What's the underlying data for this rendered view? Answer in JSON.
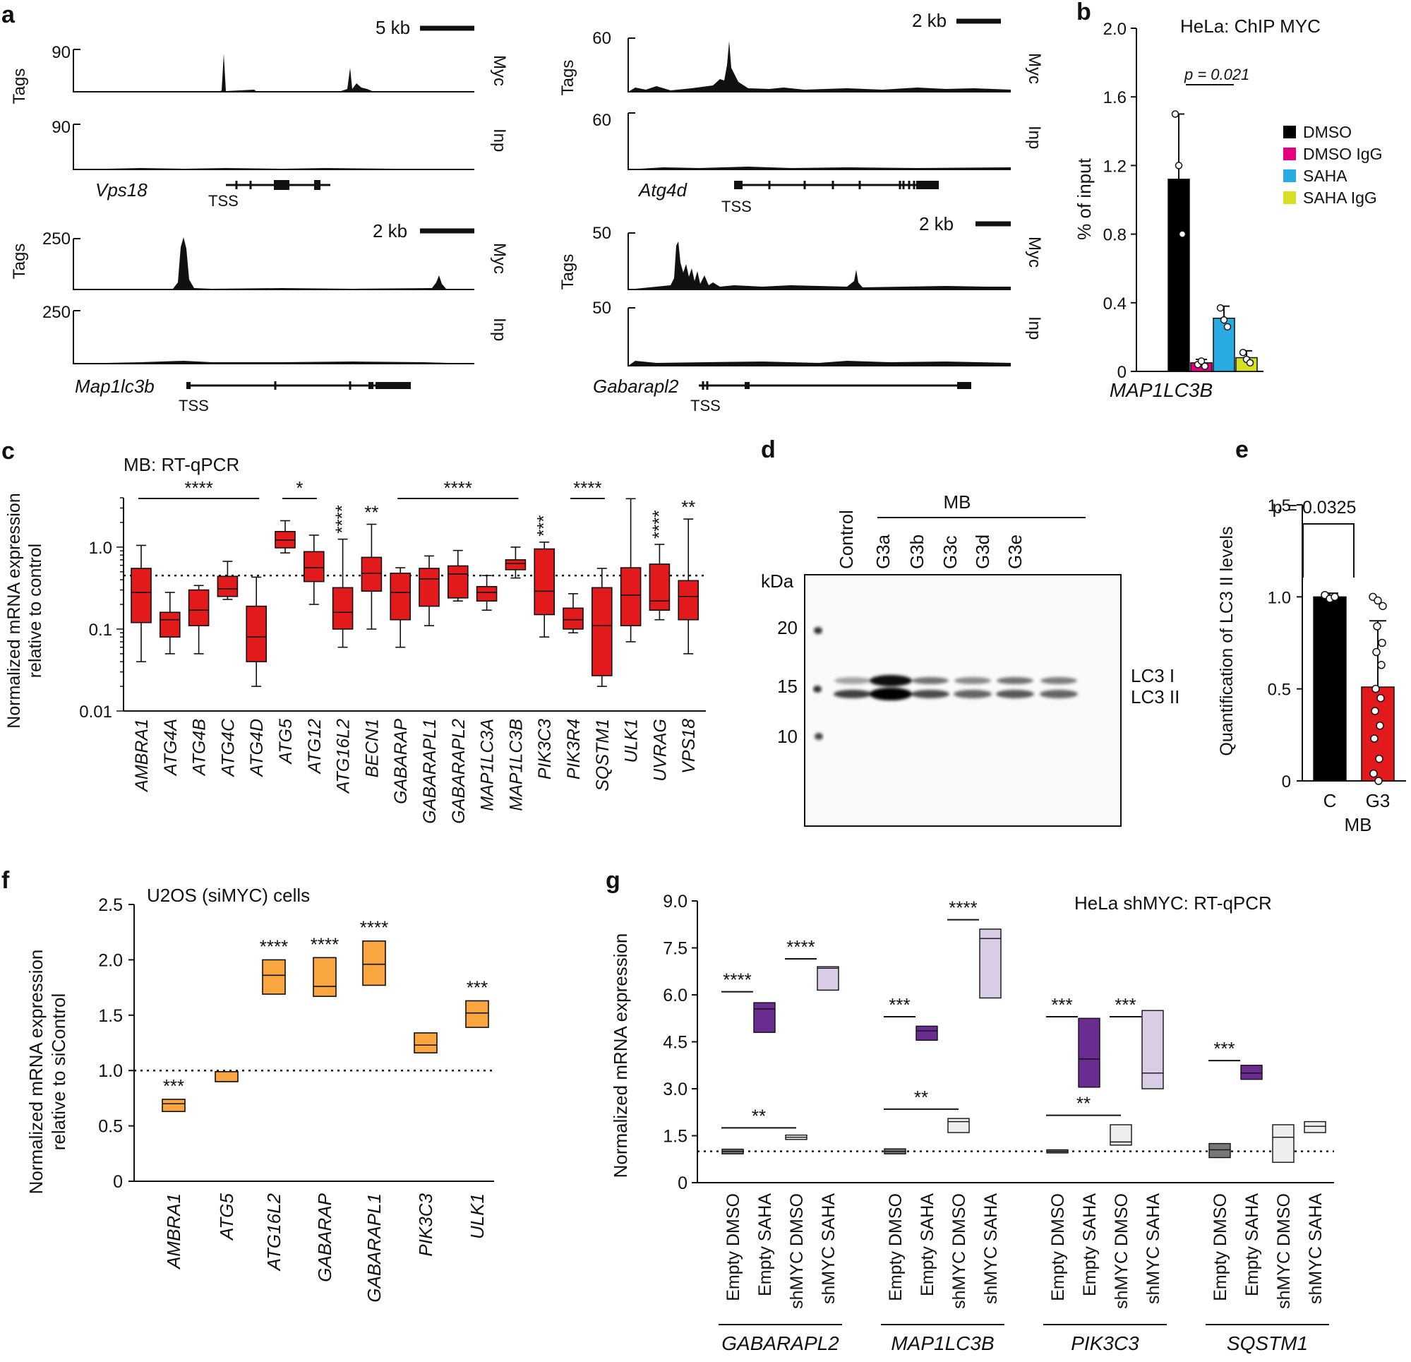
{
  "panel_labels": {
    "a": "a",
    "b": "b",
    "c": "c",
    "d": "d",
    "e": "e",
    "f": "f",
    "g": "g"
  },
  "panel_a": {
    "ylabel": "Tags",
    "tss": "TSS",
    "tracks": [
      {
        "gene": "Vps18",
        "scale": "5 kb",
        "myc_max": "90",
        "inp_max": "90",
        "myc_label": "Myc",
        "inp_label": "Inp"
      },
      {
        "gene": "Atg4d",
        "scale": "2 kb",
        "myc_max": "60",
        "inp_max": "60",
        "myc_label": "Myc",
        "inp_label": "Inp"
      },
      {
        "gene": "Map1lc3b",
        "scale": "2 kb",
        "myc_max": "250",
        "inp_max": "250",
        "myc_label": "Myc",
        "inp_label": "Inp"
      },
      {
        "gene": "Gabarapl2",
        "scale": "2 kb",
        "myc_max": "50",
        "inp_max": "50",
        "myc_label": "Myc",
        "inp_label": "Inp"
      }
    ]
  },
  "chart_data": [
    {
      "id": "b",
      "type": "bar",
      "title": "HeLa: ChIP MYC",
      "ylabel": "% of input",
      "xlabel": "MAP1LC3B",
      "ylim": [
        0,
        2.0
      ],
      "yticks": [
        "0",
        "0.4",
        "0.8",
        "1.2",
        "1.6",
        "2.0"
      ],
      "pvalue": "p = 0.021",
      "series": [
        {
          "name": "DMSO",
          "value": 1.12,
          "err": 0.38,
          "color": "#000000",
          "points": [
            1.5,
            1.2,
            0.8
          ]
        },
        {
          "name": "DMSO IgG",
          "value": 0.05,
          "err": 0.02,
          "color": "#e5007e",
          "points": [
            0.04,
            0.06,
            0.03
          ]
        },
        {
          "name": "SAHA",
          "value": 0.31,
          "err": 0.07,
          "color": "#29abe2",
          "points": [
            0.37,
            0.3,
            0.26
          ]
        },
        {
          "name": "SAHA IgG",
          "value": 0.08,
          "err": 0.04,
          "color": "#d7df23",
          "points": [
            0.11,
            0.07,
            0.05
          ]
        }
      ]
    },
    {
      "id": "c",
      "type": "boxplot",
      "title": "MB: RT-qPCR",
      "ylabel": [
        "Normalized mRNA expression",
        "relative to control"
      ],
      "yscale": "log",
      "ylim": [
        0.01,
        4
      ],
      "yticks": [
        "0.01",
        "0.1",
        "1.0"
      ],
      "reference": 0.45,
      "categories": [
        "AMBRA1",
        "ATG4A",
        "ATG4B",
        "ATG4C",
        "ATG4D",
        "ATG5",
        "ATG12",
        "ATG16L2",
        "BECN1",
        "GABARAP",
        "GABARAPL1",
        "GABARAPL2",
        "MAP1LC3A",
        "MAP1LC3B",
        "PIK3C3",
        "PIK3R4",
        "SQSTM1",
        "ULK1",
        "UVRAG",
        "VPS18"
      ],
      "boxes": [
        {
          "min": 0.04,
          "q1": 0.12,
          "med": 0.28,
          "q3": 0.55,
          "max": 1.05
        },
        {
          "min": 0.05,
          "q1": 0.08,
          "med": 0.13,
          "q3": 0.16,
          "max": 0.28
        },
        {
          "min": 0.05,
          "q1": 0.11,
          "med": 0.17,
          "q3": 0.3,
          "max": 0.34
        },
        {
          "min": 0.23,
          "q1": 0.25,
          "med": 0.31,
          "q3": 0.44,
          "max": 0.67
        },
        {
          "min": 0.02,
          "q1": 0.04,
          "med": 0.08,
          "q3": 0.19,
          "max": 0.43
        },
        {
          "min": 0.85,
          "q1": 0.98,
          "med": 1.22,
          "q3": 1.55,
          "max": 2.1
        },
        {
          "min": 0.2,
          "q1": 0.38,
          "med": 0.56,
          "q3": 0.88,
          "max": 1.4
        },
        {
          "min": 0.06,
          "q1": 0.1,
          "med": 0.16,
          "q3": 0.32,
          "max": 1.25
        },
        {
          "min": 0.1,
          "q1": 0.29,
          "med": 0.48,
          "q3": 0.75,
          "max": 1.9
        },
        {
          "min": 0.06,
          "q1": 0.13,
          "med": 0.28,
          "q3": 0.48,
          "max": 0.56
        },
        {
          "min": 0.11,
          "q1": 0.19,
          "med": 0.41,
          "q3": 0.55,
          "max": 0.78
        },
        {
          "min": 0.22,
          "q1": 0.24,
          "med": 0.47,
          "q3": 0.59,
          "max": 0.91
        },
        {
          "min": 0.17,
          "q1": 0.22,
          "med": 0.28,
          "q3": 0.33,
          "max": 0.45
        },
        {
          "min": 0.42,
          "q1": 0.53,
          "med": 0.63,
          "q3": 0.7,
          "max": 1.0
        },
        {
          "min": 0.08,
          "q1": 0.15,
          "med": 0.29,
          "q3": 0.95,
          "max": 1.15
        },
        {
          "min": 0.09,
          "q1": 0.1,
          "med": 0.13,
          "q3": 0.18,
          "max": 0.27
        },
        {
          "min": 0.02,
          "q1": 0.027,
          "med": 0.11,
          "q3": 0.32,
          "max": 0.55
        },
        {
          "min": 0.07,
          "q1": 0.11,
          "med": 0.26,
          "q3": 0.56,
          "max": 3.9
        },
        {
          "min": 0.13,
          "q1": 0.17,
          "med": 0.22,
          "q3": 0.62,
          "max": 1.08
        },
        {
          "min": 0.05,
          "q1": 0.13,
          "med": 0.25,
          "q3": 0.39,
          "max": 2.2
        }
      ],
      "significance": [
        {
          "label": "****",
          "from": 0,
          "to": 4,
          "type": "bar"
        },
        {
          "label": "*",
          "from": 5,
          "to": 6,
          "type": "bar"
        },
        {
          "label": "****",
          "from": 7,
          "to": 7,
          "type": "vertical"
        },
        {
          "label": "**",
          "from": 8,
          "to": 8,
          "type": "text"
        },
        {
          "label": "****",
          "from": 9,
          "to": 13,
          "type": "bar"
        },
        {
          "label": "***",
          "from": 14,
          "to": 14,
          "type": "vertical"
        },
        {
          "label": "****",
          "from": 15,
          "to": 16,
          "type": "bar"
        },
        {
          "label": "****",
          "from": 18,
          "to": 18,
          "type": "vertical"
        },
        {
          "label": "**",
          "from": 19,
          "to": 19,
          "type": "text"
        }
      ]
    },
    {
      "id": "d",
      "type": "western_blot",
      "group_label": "MB",
      "kda_label": "kDa",
      "lanes": [
        "Control",
        "G3a",
        "G3b",
        "G3c",
        "G3d",
        "G3e"
      ],
      "markers": [
        "20",
        "15",
        "10"
      ],
      "bands": [
        "LC3 I",
        "LC3 II"
      ]
    },
    {
      "id": "e",
      "type": "bar",
      "ylabel": "Quantification of LC3 II levels",
      "xlabel": "MB",
      "ylim": [
        0,
        1.5
      ],
      "yticks": [
        "0",
        "0.5",
        "1.0",
        "1.5"
      ],
      "pvalue": "p = 0.0325",
      "categories": [
        "C",
        "G3"
      ],
      "values": [
        1.0,
        0.51
      ],
      "err": [
        0.02,
        0.36
      ],
      "colors": [
        "#000000",
        "#e31a1c"
      ],
      "points": [
        [
          1.01,
          0.99,
          1.0
        ],
        [
          1.0,
          0.98,
          0.95,
          0.84,
          0.75,
          0.7,
          0.63,
          0.5,
          0.45,
          0.38,
          0.3,
          0.23,
          0.12,
          0.04,
          0.0
        ]
      ]
    },
    {
      "id": "f",
      "type": "floating_bar",
      "title": "U2OS (siMYC) cells",
      "ylabel": [
        "Normalized mRNA expression",
        "relative to siControl"
      ],
      "ylim": [
        0,
        2.5
      ],
      "yticks": [
        "0",
        "0.5",
        "1.0",
        "1.5",
        "2.0",
        "2.5"
      ],
      "reference": 1.0,
      "color": "#f9a640",
      "categories": [
        "AMBRA1",
        "ATG5",
        "ATG16L2",
        "GABARAP",
        "GABARAPL1",
        "PIK3C3",
        "ULK1"
      ],
      "ranges": [
        {
          "lo": 0.63,
          "mid": 0.7,
          "hi": 0.74,
          "sig": "***"
        },
        {
          "lo": 0.9,
          "mid": 0.9,
          "hi": 0.99,
          "sig": ""
        },
        {
          "lo": 1.69,
          "mid": 1.86,
          "hi": 2.0,
          "sig": "****"
        },
        {
          "lo": 1.67,
          "mid": 1.76,
          "hi": 2.02,
          "sig": "****"
        },
        {
          "lo": 1.77,
          "mid": 1.96,
          "hi": 2.17,
          "sig": "****"
        },
        {
          "lo": 1.16,
          "mid": 1.23,
          "hi": 1.34,
          "sig": ""
        },
        {
          "lo": 1.39,
          "mid": 1.52,
          "hi": 1.63,
          "sig": "***"
        }
      ]
    },
    {
      "id": "g",
      "type": "floating_bar",
      "title": "HeLa shMYC: RT-qPCR",
      "ylabel": "Normalized mRNA expression",
      "ylim": [
        0,
        9
      ],
      "yticks": [
        "0",
        "1.5",
        "3.0",
        "4.5",
        "6.0",
        "7.5",
        "9.0"
      ],
      "reference": 1.0,
      "conditions": [
        "Empty DMSO",
        "Empty SAHA",
        "shMYC DMSO",
        "shMYC SAHA"
      ],
      "groups": [
        {
          "name": "GABARAPL2",
          "ranges": [
            {
              "lo": 0.92,
              "mid": 1.0,
              "hi": 1.07,
              "color": "#777777"
            },
            {
              "lo": 4.8,
              "mid": 5.55,
              "hi": 5.75,
              "color": "#6a2c91"
            },
            {
              "lo": 1.38,
              "mid": 1.45,
              "hi": 1.52,
              "color": "#eeeeee"
            },
            {
              "lo": 6.15,
              "mid": 6.85,
              "hi": 6.9,
              "color": "#d9cde6"
            }
          ],
          "sig": [
            {
              "label": "****",
              "from": 0,
              "to": 1,
              "level": 6.1
            },
            {
              "label": "**",
              "from": 0,
              "to": 2,
              "level": 1.75
            },
            {
              "label": "****",
              "from": 2,
              "to": 3,
              "level": 7.15
            }
          ]
        },
        {
          "name": "MAP1LC3B",
          "ranges": [
            {
              "lo": 0.92,
              "mid": 1.0,
              "hi": 1.08,
              "color": "#777777"
            },
            {
              "lo": 4.55,
              "mid": 4.85,
              "hi": 5.0,
              "color": "#6a2c91"
            },
            {
              "lo": 1.6,
              "mid": 1.95,
              "hi": 2.05,
              "color": "#eeeeee"
            },
            {
              "lo": 5.9,
              "mid": 7.8,
              "hi": 8.1,
              "color": "#d9cde6"
            }
          ],
          "sig": [
            {
              "label": "***",
              "from": 0,
              "to": 1,
              "level": 5.3
            },
            {
              "label": "**",
              "from": 0,
              "to": 2,
              "level": 2.35
            },
            {
              "label": "****",
              "from": 2,
              "to": 3,
              "level": 8.4
            }
          ]
        },
        {
          "name": "PIK3C3",
          "ranges": [
            {
              "lo": 0.95,
              "mid": 1.0,
              "hi": 1.05,
              "color": "#777777"
            },
            {
              "lo": 3.05,
              "mid": 3.95,
              "hi": 5.25,
              "color": "#6a2c91"
            },
            {
              "lo": 1.2,
              "mid": 1.3,
              "hi": 1.85,
              "color": "#eeeeee"
            },
            {
              "lo": 3.0,
              "mid": 3.5,
              "hi": 5.5,
              "color": "#d9cde6"
            }
          ],
          "sig": [
            {
              "label": "***",
              "from": 0,
              "to": 1,
              "level": 5.3
            },
            {
              "label": "**",
              "from": 0,
              "to": 2,
              "level": 2.15
            },
            {
              "label": "***",
              "from": 2,
              "to": 3,
              "level": 5.3
            }
          ]
        },
        {
          "name": "SQSTM1",
          "ranges": [
            {
              "lo": 0.8,
              "mid": 1.05,
              "hi": 1.25,
              "color": "#777777"
            },
            {
              "lo": 3.3,
              "mid": 3.5,
              "hi": 3.75,
              "color": "#6a2c91"
            },
            {
              "lo": 0.65,
              "mid": 1.45,
              "hi": 1.85,
              "color": "#eeeeee"
            },
            {
              "lo": 1.6,
              "mid": 1.8,
              "hi": 1.95,
              "color": "#eeeeee"
            }
          ],
          "sig": [
            {
              "label": "***",
              "from": 0,
              "to": 1,
              "level": 3.9
            }
          ]
        }
      ]
    }
  ]
}
